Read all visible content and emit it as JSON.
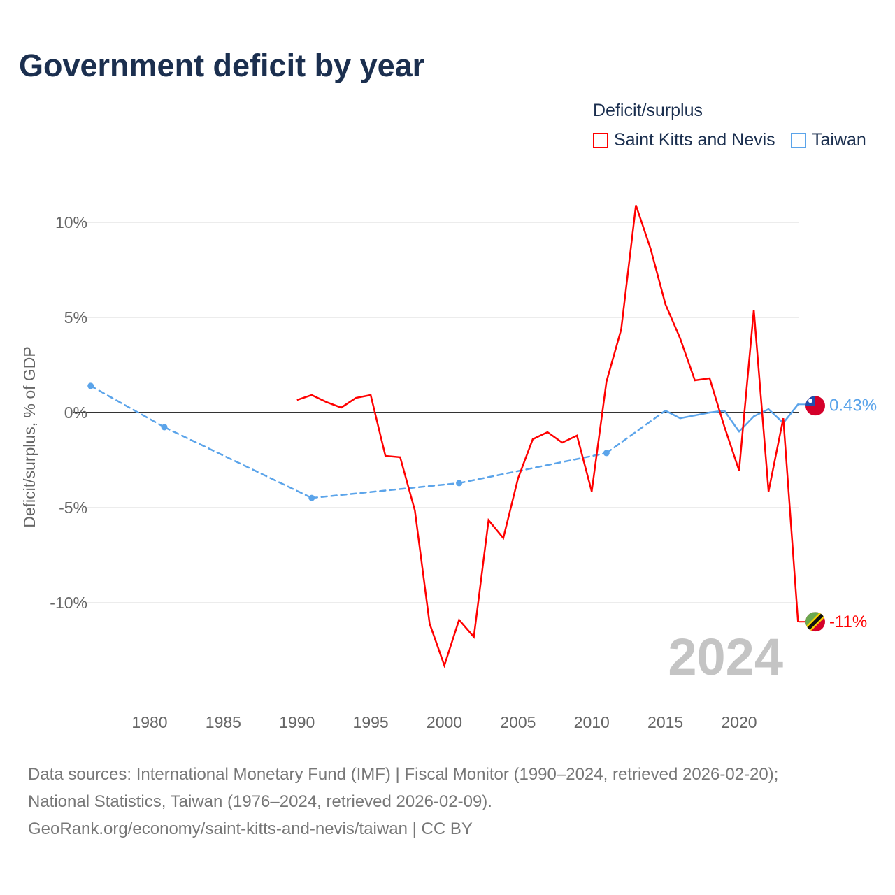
{
  "title": "Government deficit by year",
  "legend": {
    "title": "Deficit/surplus",
    "items": [
      {
        "label": "Saint Kitts and Nevis",
        "color": "#ff0000"
      },
      {
        "label": "Taiwan",
        "color": "#5ba4ea"
      }
    ]
  },
  "year_watermark": "2024",
  "source_lines": [
    "Data sources: International Monetary Fund (IMF) | Fiscal Monitor (1990–2024, retrieved 2026-02-20);",
    "National Statistics, Taiwan (1976–2024, retrieved 2026-02-09).",
    "GeoRank.org/economy/saint-kitts-and-nevis/taiwan | CC BY"
  ],
  "chart_data": {
    "type": "line",
    "title": "Government deficit by year",
    "xlabel": "",
    "ylabel": "Deficit/surplus, % of GDP",
    "xlim": [
      1975,
      2024
    ],
    "ylim": [
      -15,
      12
    ],
    "xticks": [
      1980,
      1985,
      1990,
      1995,
      2000,
      2005,
      2010,
      2015,
      2020
    ],
    "xtick_labels": [
      "1980",
      "1985",
      "1990",
      "1995",
      "2000",
      "2005",
      "2010",
      "2015",
      "2020"
    ],
    "yticks": [
      10,
      5,
      0,
      -5,
      -10
    ],
    "ytick_labels": [
      "10%",
      "5%",
      "0%",
      "-5%",
      "-10%"
    ],
    "grid": true,
    "legend_position": "top-right",
    "series": [
      {
        "name": "Saint Kitts and Nevis",
        "color": "#ff0000",
        "end_label": "-11%",
        "x": [
          1990,
          1991,
          1992,
          1993,
          1994,
          1995,
          1996,
          1997,
          1998,
          1999,
          2000,
          2001,
          2002,
          2003,
          2004,
          2005,
          2006,
          2007,
          2008,
          2009,
          2010,
          2011,
          2012,
          2013,
          2014,
          2015,
          2016,
          2017,
          2018,
          2019,
          2020,
          2021,
          2022,
          2023,
          2024
        ],
        "y": [
          0.66,
          0.92,
          0.55,
          0.26,
          0.77,
          0.92,
          -2.28,
          -2.35,
          -5.15,
          -11.1,
          -13.3,
          -10.9,
          -11.8,
          -5.66,
          -6.6,
          -3.46,
          -1.4,
          -1.03,
          -1.58,
          -1.21,
          -4.15,
          1.62,
          4.37,
          10.9,
          8.6,
          5.7,
          3.9,
          1.69,
          1.8,
          -0.73,
          -3.05,
          5.4,
          -4.15,
          -0.3,
          -11.0
        ]
      },
      {
        "name": "Taiwan",
        "color": "#5ba4ea",
        "end_label": "0.43%",
        "x": [
          1976,
          1981,
          1991,
          2001,
          2011,
          2015,
          2016,
          2017,
          2018,
          2019,
          2020,
          2021,
          2022,
          2023,
          2024
        ],
        "y": [
          1.4,
          -0.77,
          -4.49,
          -3.71,
          -2.13,
          0.1,
          -0.3,
          -0.15,
          0.0,
          0.1,
          -1.0,
          -0.2,
          0.18,
          -0.55,
          0.43
        ]
      }
    ]
  }
}
